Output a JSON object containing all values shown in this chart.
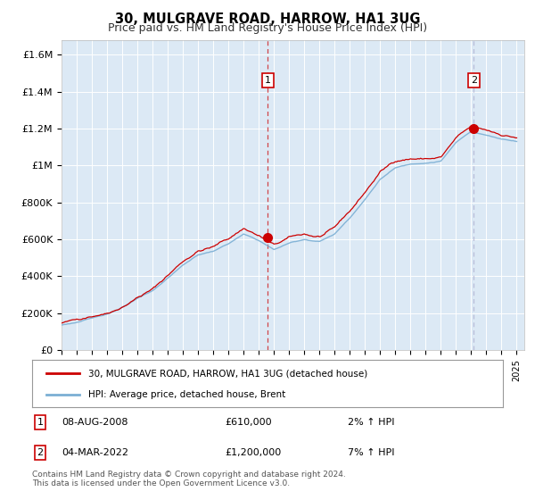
{
  "title": "30, MULGRAVE ROAD, HARROW, HA1 3UG",
  "subtitle": "Price paid vs. HM Land Registry's House Price Index (HPI)",
  "legend_label_red": "30, MULGRAVE ROAD, HARROW, HA1 3UG (detached house)",
  "legend_label_blue": "HPI: Average price, detached house, Brent",
  "annotation1_date": "08-AUG-2008",
  "annotation1_price": "£610,000",
  "annotation1_hpi": "2% ↑ HPI",
  "annotation1_year": 2008.6,
  "annotation1_value": 610000,
  "annotation2_date": "04-MAR-2022",
  "annotation2_price": "£1,200,000",
  "annotation2_hpi": "7% ↑ HPI",
  "annotation2_year": 2022.17,
  "annotation2_value": 1200000,
  "red_color": "#cc0000",
  "blue_color": "#7bafd4",
  "background_color": "#ffffff",
  "plot_bg_color": "#dce9f5",
  "grid_color": "#ffffff",
  "vline1_color": "#cc0000",
  "vline2_color": "#aaaacc",
  "yticks": [
    0,
    200000,
    400000,
    600000,
    800000,
    1000000,
    1200000,
    1400000,
    1600000
  ],
  "ytick_labels": [
    "£0",
    "£200K",
    "£400K",
    "£600K",
    "£800K",
    "£1M",
    "£1.2M",
    "£1.4M",
    "£1.6M"
  ],
  "ylim": [
    0,
    1680000
  ],
  "xlim_start": 1995,
  "xlim_end": 2025.5,
  "footnote": "Contains HM Land Registry data © Crown copyright and database right 2024.\nThis data is licensed under the Open Government Licence v3.0."
}
